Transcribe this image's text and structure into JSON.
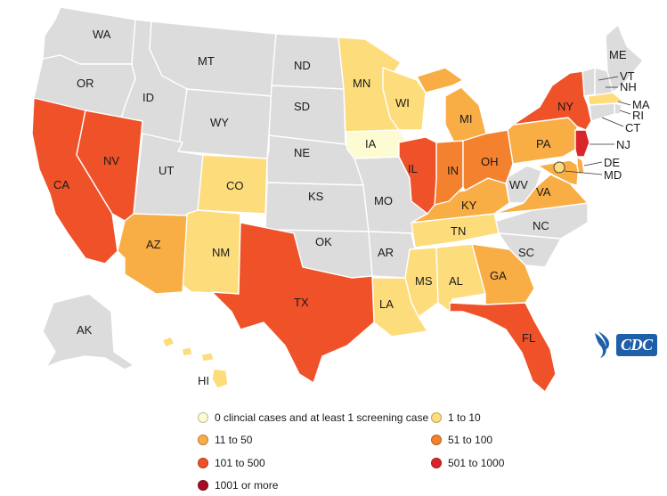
{
  "colors": {
    "no_data": "#dcdcdc",
    "screening_only": "#fdfbd2",
    "c1_10": "#fddc7c",
    "c11_50": "#f8ad45",
    "c51_100": "#f3812d",
    "c101_500": "#ef5128",
    "c501_1000": "#d9262b",
    "c1001": "#a50d24"
  },
  "states": {
    "WA": "WA",
    "OR": "OR",
    "CA": "CA",
    "NV": "NV",
    "ID": "ID",
    "MT": "MT",
    "WY": "WY",
    "UT": "UT",
    "AZ": "AZ",
    "CO": "CO",
    "NM": "NM",
    "ND": "ND",
    "SD": "SD",
    "NE": "NE",
    "KS": "KS",
    "OK": "OK",
    "TX": "TX",
    "MN": "MN",
    "IA": "IA",
    "MO": "MO",
    "AR": "AR",
    "LA": "LA",
    "WI": "WI",
    "IL": "IL",
    "MI": "MI",
    "IN": "IN",
    "OH": "OH",
    "KY": "KY",
    "TN": "TN",
    "MS": "MS",
    "AL": "AL",
    "GA": "GA",
    "FL": "FL",
    "SC": "SC",
    "NC": "NC",
    "VA": "VA",
    "WV": "WV",
    "PA": "PA",
    "NY": "NY",
    "ME": "ME",
    "VT": "VT",
    "NH": "NH",
    "MA": "MA",
    "RI": "RI",
    "CT": "CT",
    "NJ": "NJ",
    "DE": "DE",
    "MD": "MD",
    "AK": "AK",
    "HI": "HI"
  },
  "legend": {
    "screening_only": "0 clincial cases and at least 1 screening case",
    "c1_10": "1 to 10",
    "c11_50": "11 to 50",
    "c51_100": "51 to 100",
    "c101_500": "101 to 500",
    "c501_1000": "501 to 1000",
    "c1001": "1001 or more"
  },
  "logo": {
    "text": "CDC"
  }
}
